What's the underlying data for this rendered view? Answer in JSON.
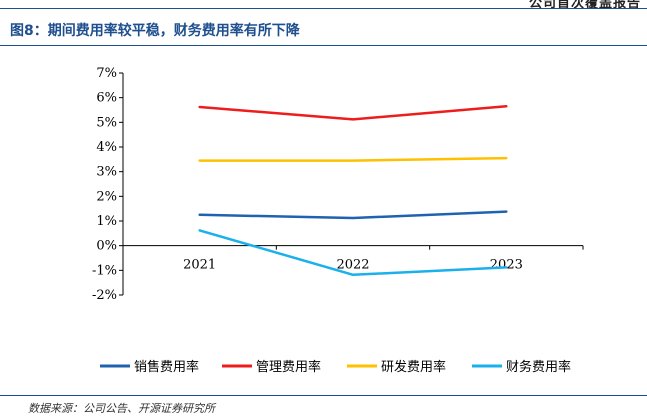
{
  "header": {
    "text": "公司首次覆盖报告"
  },
  "figure": {
    "title": "图8：期间费用率较平稳，财务费用率有所下降"
  },
  "footer": {
    "source": "数据来源：公司公告、开源证券研究所"
  },
  "colors": {
    "accent": "#1e4f8f"
  },
  "chart_data": {
    "type": "line",
    "x": [
      "2021",
      "2022",
      "2023"
    ],
    "ylim": [
      -2,
      7
    ],
    "yticks": [
      "-2%",
      "-1%",
      "0%",
      "1%",
      "2%",
      "3%",
      "4%",
      "5%",
      "6%",
      "7%"
    ],
    "ytick_values": [
      -2,
      -1,
      0,
      1,
      2,
      3,
      4,
      5,
      6,
      7
    ],
    "grid": false,
    "legend_position": "bottom",
    "series": [
      {
        "name": "销售费用率",
        "color": "#1f63b0",
        "values": [
          1.25,
          1.12,
          1.38
        ]
      },
      {
        "name": "管理费用率",
        "color": "#ee1c1c",
        "values": [
          5.62,
          5.12,
          5.65
        ]
      },
      {
        "name": "研发费用率",
        "color": "#ffc000",
        "values": [
          3.45,
          3.45,
          3.55
        ]
      },
      {
        "name": "财务费用率",
        "color": "#1ab0ec",
        "values": [
          0.62,
          -1.18,
          -0.88
        ]
      }
    ]
  }
}
